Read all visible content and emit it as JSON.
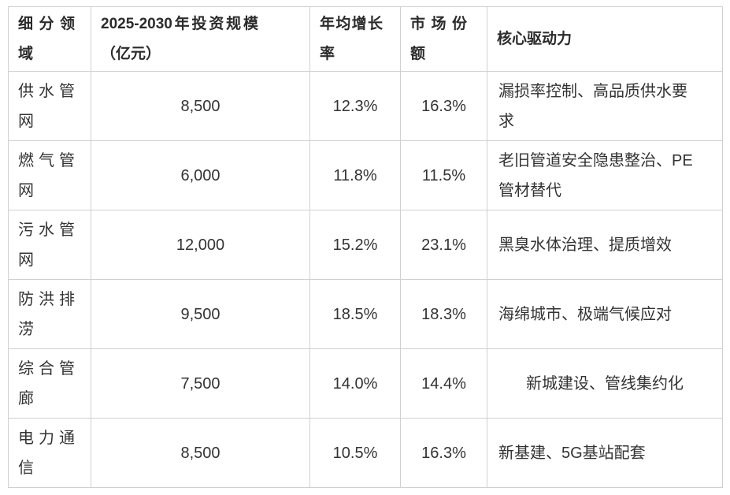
{
  "colors": {
    "background": "#ffffff",
    "border": "#d0d0d0",
    "header_text": "#2b2b2b",
    "body_text": "#333333"
  },
  "chart_data": {
    "type": "table",
    "columns": [
      "细分领域",
      "2025-2030年投资规模（亿元）",
      "年均增长率",
      "市场份额",
      "核心驱动力"
    ],
    "rows": [
      {
        "field": "供水管网",
        "investment": "8,500",
        "growth": "12.3%",
        "share": "16.3%",
        "driver": "漏损率控制、高品质供水要求"
      },
      {
        "field": "燃气管网",
        "investment": "6,000",
        "growth": "11.8%",
        "share": "11.5%",
        "driver": "老旧管道安全隐患整治、PE管材替代"
      },
      {
        "field": "污水管网",
        "investment": "12,000",
        "growth": "15.2%",
        "share": "23.1%",
        "driver": "黑臭水体治理、提质增效"
      },
      {
        "field": "防洪排涝",
        "investment": "9,500",
        "growth": "18.5%",
        "share": "18.3%",
        "driver": "海绵城市、极端气候应对"
      },
      {
        "field": "综合管廊",
        "investment": "7,500",
        "growth": "14.0%",
        "share": "14.4%",
        "driver": "新城建设、管线集约化"
      },
      {
        "field": "电力通信",
        "investment": "8,500",
        "growth": "10.5%",
        "share": "16.3%",
        "driver": "新基建、5G基站配套"
      }
    ],
    "investment_values": [
      8500,
      6000,
      12000,
      9500,
      7500,
      8500
    ],
    "growth_values_pct": [
      12.3,
      11.8,
      15.2,
      18.5,
      14.0,
      10.5
    ],
    "share_values_pct": [
      16.3,
      11.5,
      23.1,
      18.3,
      14.4,
      16.3
    ]
  }
}
